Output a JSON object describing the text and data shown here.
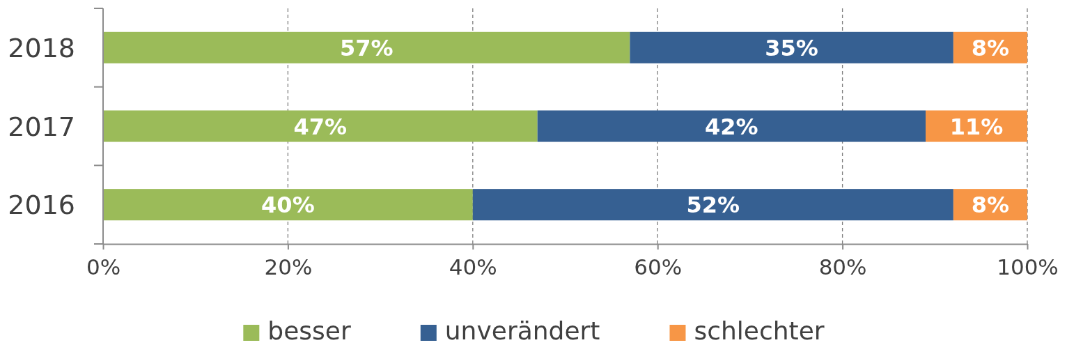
{
  "chart_data": {
    "type": "bar",
    "orientation": "horizontal",
    "stacked": true,
    "categories": [
      "2018",
      "2017",
      "2016"
    ],
    "series": [
      {
        "name": "besser",
        "color": "#9bbb59",
        "values": [
          57,
          47,
          40
        ]
      },
      {
        "name": "unverändert",
        "color": "#366092",
        "values": [
          35,
          42,
          52
        ]
      },
      {
        "name": "schlechter",
        "color": "#f79646",
        "values": [
          8,
          11,
          8
        ]
      }
    ],
    "xlim": [
      0,
      100
    ],
    "xticks": [
      {
        "value": 0,
        "label": "0%"
      },
      {
        "value": 20,
        "label": "20%"
      },
      {
        "value": 40,
        "label": "40%"
      },
      {
        "value": 60,
        "label": "60%"
      },
      {
        "value": 80,
        "label": "80%"
      },
      {
        "value": 100,
        "label": "100%"
      }
    ],
    "value_labels": [
      [
        "57%",
        "47%",
        "40%"
      ],
      [
        "35%",
        "42%",
        "52%"
      ],
      [
        "8%",
        "11%",
        "8%"
      ]
    ],
    "grid": "x",
    "legend": "bottom"
  }
}
